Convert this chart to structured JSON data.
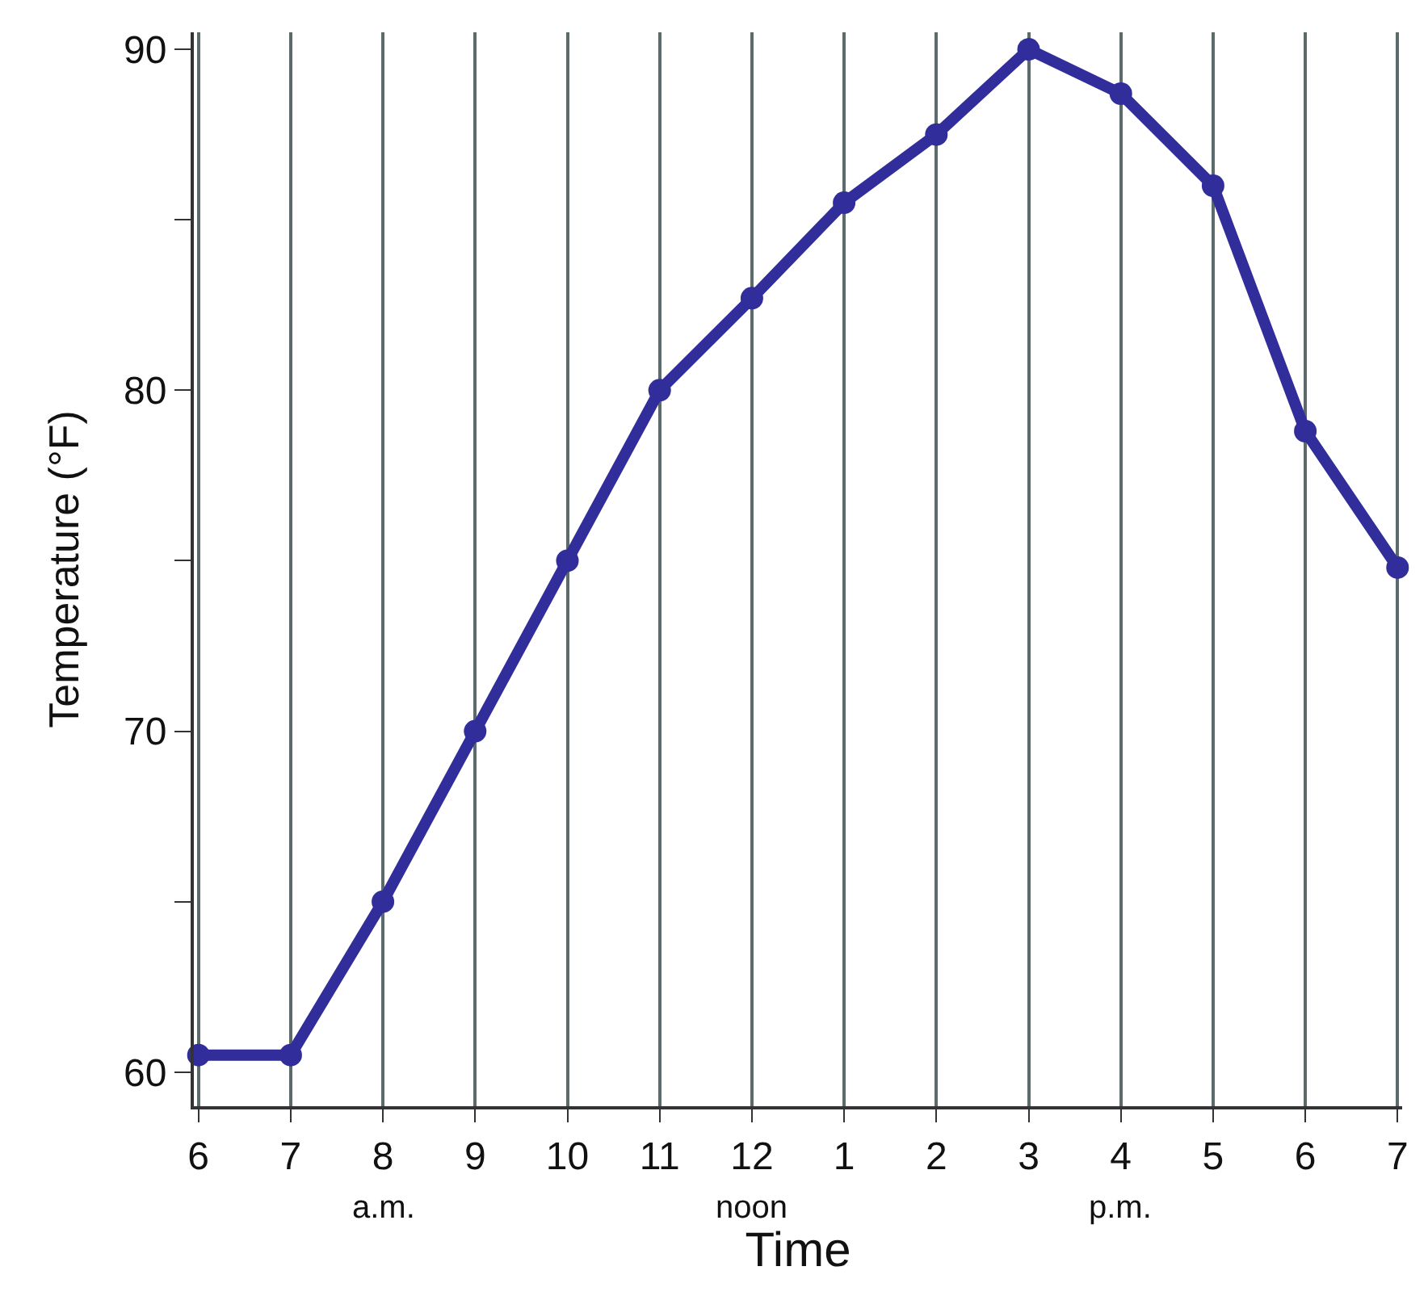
{
  "chart_data": {
    "type": "line",
    "xlabel": "Time",
    "ylabel": "Temperature (°F)",
    "categories": [
      "6",
      "7",
      "8",
      "9",
      "10",
      "11",
      "12",
      "1",
      "2",
      "3",
      "4",
      "5",
      "6",
      "7"
    ],
    "series": [
      {
        "color": "#312e9c",
        "values": [
          60.5,
          60.5,
          65,
          70,
          75,
          80,
          82.7,
          85.5,
          87.5,
          90,
          88.7,
          86,
          78.8,
          74.8
        ]
      }
    ],
    "ylim": [
      59,
      90.5
    ],
    "yticks": [
      60,
      {
        "value": 65,
        "label": null
      },
      70,
      {
        "value": 75,
        "label": null
      },
      80,
      {
        "value": 85,
        "label": null
      },
      90
    ],
    "grid": "x",
    "marker": "circle",
    "line_style": "solid",
    "annotations": [
      "a.m.",
      "noon",
      "p.m."
    ]
  }
}
